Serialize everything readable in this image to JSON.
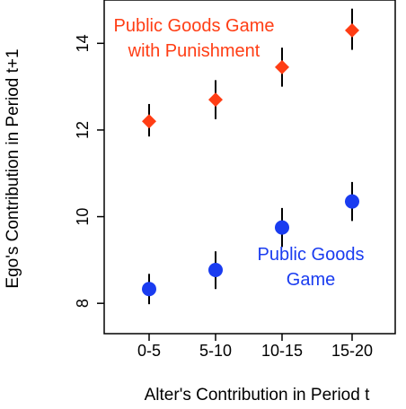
{
  "chart_data": {
    "type": "scatter",
    "xlabel": "Alter's Contribution in Period t",
    "ylabel": "Ego's Contribution in Period t+1",
    "categories": [
      "0-5",
      "5-10",
      "10-15",
      "15-20"
    ],
    "ylim": [
      7.3,
      15.0
    ],
    "yticks": [
      8,
      10,
      12,
      14
    ],
    "grid": false,
    "legend": "none",
    "series": [
      {
        "name": "Public Goods Game with Punishment",
        "label_lines": [
          "Public Goods Game",
          "with Punishment"
        ],
        "color": "#ff3d14",
        "marker": "diamond",
        "values": [
          12.2,
          12.7,
          13.45,
          14.3
        ],
        "err_low": [
          11.85,
          12.25,
          13.0,
          13.85
        ],
        "err_high": [
          12.6,
          13.15,
          13.9,
          14.8
        ]
      },
      {
        "name": "Public Goods Game",
        "label_lines": [
          "Public Goods",
          "Game"
        ],
        "color": "#1a3cf0",
        "marker": "circle",
        "values": [
          8.33,
          8.77,
          9.75,
          10.35
        ],
        "err_low": [
          7.98,
          8.33,
          9.3,
          9.9
        ],
        "err_high": [
          8.68,
          9.2,
          10.2,
          10.8
        ]
      }
    ]
  }
}
